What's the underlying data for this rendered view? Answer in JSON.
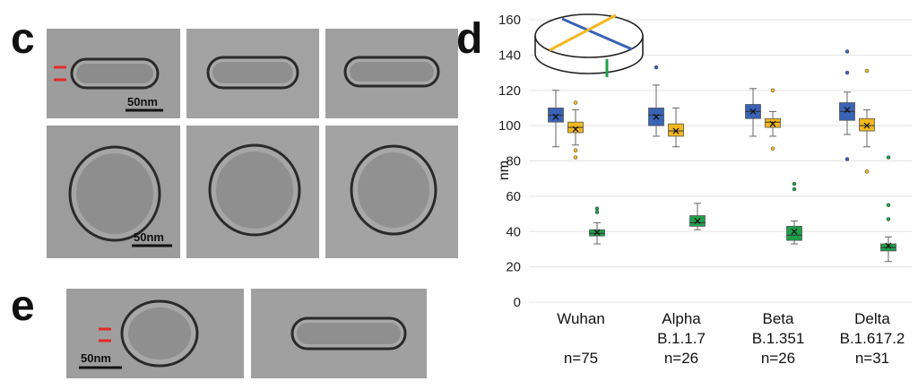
{
  "panels": {
    "c": {
      "letter": "c",
      "scale_bar_label": "50nm"
    },
    "d": {
      "letter": "d"
    },
    "e": {
      "letter": "e",
      "scale_bar_label": "50nm"
    }
  },
  "colors": {
    "blue": "#3a62b5",
    "yellow": "#f2b81f",
    "green": "#1f9e4a",
    "red": "#e32b2b"
  },
  "chart_data": {
    "type": "box",
    "ylabel": "nm",
    "ylim": [
      0,
      160
    ],
    "yticks": [
      0,
      20,
      40,
      60,
      80,
      100,
      120,
      140,
      160
    ],
    "grid": true,
    "categories": [
      {
        "name": "Wuhan",
        "lineage": "",
        "n": "n=75"
      },
      {
        "name": "Alpha",
        "lineage": "B.1.1.7",
        "n": "n=26"
      },
      {
        "name": "Beta",
        "lineage": "B.1.351",
        "n": "n=26"
      },
      {
        "name": "Delta",
        "lineage": "B.1.617.2",
        "n": "n=31"
      }
    ],
    "series": [
      {
        "color": "blue",
        "boxes": [
          {
            "q1": 102,
            "median": 106,
            "q3": 110,
            "whisker_low": 88,
            "whisker_high": 120,
            "mean": 105,
            "outliers": []
          },
          {
            "q1": 100,
            "median": 106,
            "q3": 110,
            "whisker_low": 94,
            "whisker_high": 123,
            "mean": 105,
            "outliers": [
              133
            ]
          },
          {
            "q1": 104,
            "median": 108,
            "q3": 112,
            "whisker_low": 94,
            "whisker_high": 121,
            "mean": 108,
            "outliers": []
          },
          {
            "q1": 103,
            "median": 108,
            "q3": 113,
            "whisker_low": 95,
            "whisker_high": 119,
            "mean": 109,
            "outliers": [
              142,
              130,
              81
            ]
          }
        ]
      },
      {
        "color": "yellow",
        "boxes": [
          {
            "q1": 96,
            "median": 99,
            "q3": 102,
            "whisker_low": 89,
            "whisker_high": 109,
            "mean": 98,
            "outliers": [
              113,
              86,
              82
            ]
          },
          {
            "q1": 94,
            "median": 97,
            "q3": 101,
            "whisker_low": 88,
            "whisker_high": 110,
            "mean": 97,
            "outliers": []
          },
          {
            "q1": 99,
            "median": 102,
            "q3": 104,
            "whisker_low": 94,
            "whisker_high": 108,
            "mean": 101,
            "outliers": [
              120,
              87
            ]
          },
          {
            "q1": 97,
            "median": 100,
            "q3": 104,
            "whisker_low": 88,
            "whisker_high": 109,
            "mean": 100,
            "outliers": [
              131,
              74
            ]
          }
        ]
      },
      {
        "color": "green",
        "boxes": [
          {
            "q1": 37.5,
            "median": 39,
            "q3": 41,
            "whisker_low": 33,
            "whisker_high": 45,
            "mean": 39.5,
            "outliers": [
              53,
              51
            ]
          },
          {
            "q1": 43,
            "median": 45,
            "q3": 49,
            "whisker_low": 41,
            "whisker_high": 56,
            "mean": 46,
            "outliers": []
          },
          {
            "q1": 35,
            "median": 38,
            "q3": 43,
            "whisker_low": 33,
            "whisker_high": 46,
            "mean": 40,
            "outliers": [
              67,
              64
            ]
          },
          {
            "q1": 29,
            "median": 31,
            "q3": 33,
            "whisker_low": 23,
            "whisker_high": 37,
            "mean": 32,
            "outliers": [
              82,
              55,
              47
            ]
          }
        ]
      }
    ]
  }
}
